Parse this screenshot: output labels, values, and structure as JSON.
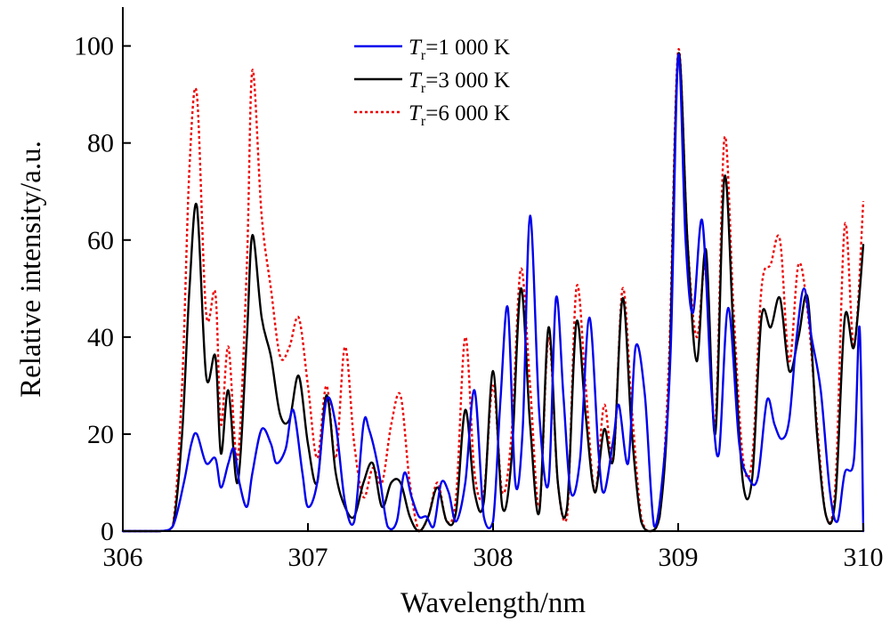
{
  "chart_data": {
    "type": "line",
    "xlabel": "Wavelength/nm",
    "ylabel": "Relative intensity/a.u.",
    "xlim": [
      306,
      310
    ],
    "ylim": [
      0,
      108
    ],
    "xticks": [
      "306",
      "307",
      "308",
      "309",
      "310"
    ],
    "yticks": [
      "0",
      "20",
      "40",
      "60",
      "80",
      "100"
    ],
    "xtick_values": [
      306,
      307,
      308,
      309,
      310
    ],
    "ytick_values": [
      0,
      20,
      40,
      60,
      80,
      100
    ],
    "grid": false,
    "legend_position": "top-center",
    "series": [
      {
        "name": "T_r=1 000 K",
        "legend_label": {
          "symbol": "T",
          "sub": "r",
          "rest": "=1 000 K"
        },
        "color": "#0000ee",
        "style": "solid",
        "x": [
          306.0,
          306.2,
          306.27,
          306.33,
          306.37,
          306.4,
          306.45,
          306.5,
          306.53,
          306.57,
          306.6,
          306.63,
          306.67,
          306.7,
          306.75,
          306.8,
          306.83,
          306.88,
          306.92,
          306.97,
          307.0,
          307.05,
          307.1,
          307.15,
          307.2,
          307.25,
          307.3,
          307.33,
          307.38,
          307.43,
          307.48,
          307.52,
          307.56,
          307.6,
          307.64,
          307.68,
          307.72,
          307.76,
          307.8,
          307.85,
          307.9,
          307.95,
          308.0,
          308.04,
          308.08,
          308.12,
          308.16,
          308.2,
          308.25,
          308.3,
          308.34,
          308.38,
          308.42,
          308.47,
          308.52,
          308.57,
          308.6,
          308.65,
          308.68,
          308.73,
          308.77,
          308.82,
          308.87,
          308.92,
          308.96,
          309.0,
          309.04,
          309.08,
          309.13,
          309.18,
          309.22,
          309.27,
          309.33,
          309.38,
          309.43,
          309.48,
          309.52,
          309.56,
          309.6,
          309.64,
          309.68,
          309.72,
          309.77,
          309.82,
          309.86,
          309.9,
          309.95,
          309.98,
          310.0
        ],
        "y": [
          0,
          0,
          1,
          10,
          18,
          20,
          14,
          15,
          9,
          14,
          17,
          10,
          5,
          12,
          21,
          18,
          14,
          17,
          25,
          12,
          5,
          10,
          27,
          22,
          6,
          2,
          22,
          21,
          13,
          1,
          2,
          12,
          7,
          3,
          3,
          1,
          10,
          8,
          2,
          10,
          29,
          3,
          2,
          27,
          46,
          10,
          21,
          65,
          24,
          10,
          48,
          28,
          8,
          15,
          44,
          16,
          8,
          19,
          26,
          14,
          38,
          28,
          1,
          13,
          38,
          98,
          60,
          45,
          64,
          29,
          16,
          46,
          18,
          11,
          11,
          27,
          22,
          19,
          23,
          40,
          50,
          40,
          29,
          8,
          2,
          12,
          15,
          42,
          0
        ]
      },
      {
        "name": "T_r=3 000 K",
        "legend_label": {
          "symbol": "T",
          "sub": "r",
          "rest": "=3 000 K"
        },
        "color": "#000000",
        "style": "solid",
        "x": [
          306.0,
          306.2,
          306.27,
          306.32,
          306.36,
          306.4,
          306.45,
          306.5,
          306.53,
          306.57,
          306.62,
          306.67,
          306.7,
          306.75,
          306.8,
          306.85,
          306.9,
          306.95,
          307.0,
          307.05,
          307.1,
          307.15,
          307.2,
          307.25,
          307.3,
          307.35,
          307.4,
          307.45,
          307.5,
          307.55,
          307.6,
          307.65,
          307.7,
          307.75,
          307.8,
          307.85,
          307.9,
          307.95,
          308.0,
          308.05,
          308.1,
          308.15,
          308.2,
          308.25,
          308.3,
          308.35,
          308.4,
          308.45,
          308.5,
          308.55,
          308.6,
          308.65,
          308.7,
          308.75,
          308.8,
          308.85,
          308.9,
          308.95,
          309.0,
          309.05,
          309.1,
          309.15,
          309.2,
          309.25,
          309.3,
          309.35,
          309.4,
          309.45,
          309.5,
          309.55,
          309.6,
          309.65,
          309.7,
          309.75,
          309.8,
          309.85,
          309.9,
          309.95,
          310.0
        ],
        "y": [
          0,
          0,
          1,
          20,
          50,
          67,
          32,
          36,
          16,
          29,
          10,
          40,
          61,
          44,
          36,
          24,
          23,
          32,
          18,
          10,
          28,
          12,
          5,
          3,
          10,
          14,
          5,
          10,
          10,
          3,
          0,
          3,
          9,
          2,
          4,
          25,
          8,
          6,
          33,
          5,
          15,
          50,
          22,
          4,
          42,
          10,
          5,
          43,
          24,
          8,
          21,
          15,
          48,
          20,
          2,
          0,
          3,
          30,
          98,
          60,
          35,
          58,
          20,
          73,
          40,
          10,
          11,
          44,
          42,
          48,
          33,
          40,
          48,
          20,
          3,
          7,
          44,
          38,
          59
        ]
      },
      {
        "name": "T_r=6 000 K",
        "legend_label": {
          "symbol": "T",
          "sub": "r",
          "rest": "=6 000 K"
        },
        "color": "#ee0000",
        "style": "dotted",
        "x": [
          306.0,
          306.2,
          306.27,
          306.32,
          306.36,
          306.4,
          306.45,
          306.5,
          306.53,
          306.57,
          306.62,
          306.67,
          306.7,
          306.75,
          306.8,
          306.85,
          306.9,
          306.95,
          307.0,
          307.05,
          307.1,
          307.15,
          307.2,
          307.25,
          307.3,
          307.35,
          307.4,
          307.45,
          307.5,
          307.55,
          307.6,
          307.65,
          307.7,
          307.75,
          307.8,
          307.85,
          307.9,
          307.95,
          308.0,
          308.05,
          308.1,
          308.15,
          308.2,
          308.25,
          308.3,
          308.35,
          308.4,
          308.45,
          308.5,
          308.55,
          308.6,
          308.65,
          308.7,
          308.75,
          308.8,
          308.85,
          308.9,
          308.95,
          309.0,
          309.05,
          309.1,
          309.15,
          309.2,
          309.25,
          309.3,
          309.35,
          309.4,
          309.45,
          309.5,
          309.55,
          309.6,
          309.65,
          309.7,
          309.75,
          309.8,
          309.85,
          309.9,
          309.95,
          310.0
        ],
        "y": [
          0,
          0,
          1,
          30,
          75,
          90,
          45,
          49,
          22,
          38,
          15,
          55,
          95,
          65,
          50,
          36,
          38,
          44,
          30,
          15,
          30,
          15,
          38,
          18,
          7,
          13,
          10,
          22,
          28,
          10,
          0,
          3,
          10,
          2,
          7,
          40,
          12,
          8,
          30,
          8,
          20,
          54,
          30,
          5,
          40,
          10,
          3,
          50,
          30,
          8,
          26,
          15,
          50,
          25,
          3,
          0,
          3,
          35,
          99,
          60,
          40,
          55,
          22,
          81,
          45,
          15,
          15,
          50,
          55,
          60,
          35,
          55,
          45,
          22,
          3,
          10,
          63,
          38,
          68
        ]
      }
    ]
  }
}
